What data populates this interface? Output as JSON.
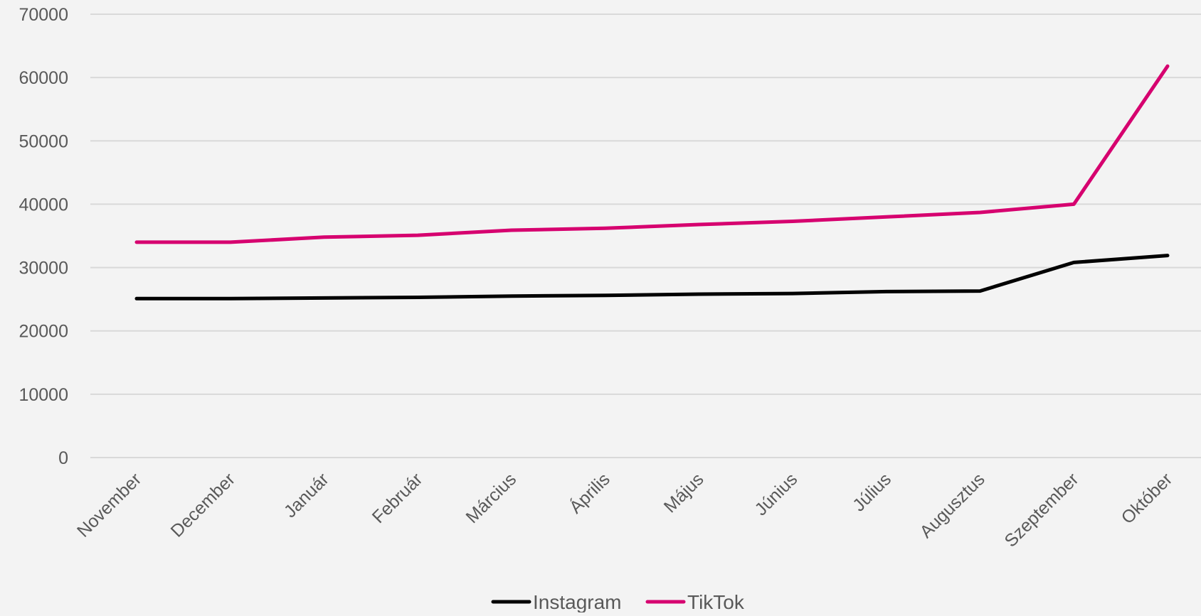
{
  "chart_data": {
    "type": "line",
    "title": "",
    "xlabel": "",
    "ylabel": "",
    "categories": [
      "November",
      "December",
      "Január",
      "Február",
      "Március",
      "Április",
      "Május",
      "Június",
      "Július",
      "Augusztus",
      "Szeptember",
      "Október"
    ],
    "ylim": [
      0,
      70000
    ],
    "yticks": [
      0,
      10000,
      20000,
      30000,
      40000,
      50000,
      60000,
      70000
    ],
    "ytick_labels": [
      "0",
      "10000",
      "20000",
      "30000",
      "40000",
      "50000",
      "60000",
      "70000"
    ],
    "grid": true,
    "legend_position": "bottom",
    "series": [
      {
        "name": "Instagram",
        "color": "#000000",
        "values": [
          25100,
          25100,
          25200,
          25300,
          25500,
          25600,
          25800,
          25900,
          26200,
          26300,
          30800,
          31900
        ]
      },
      {
        "name": "TikTok",
        "color": "#d6006f",
        "values": [
          34000,
          34000,
          34800,
          35100,
          35900,
          36200,
          36800,
          37300,
          38000,
          38700,
          40000,
          61800
        ]
      }
    ]
  }
}
